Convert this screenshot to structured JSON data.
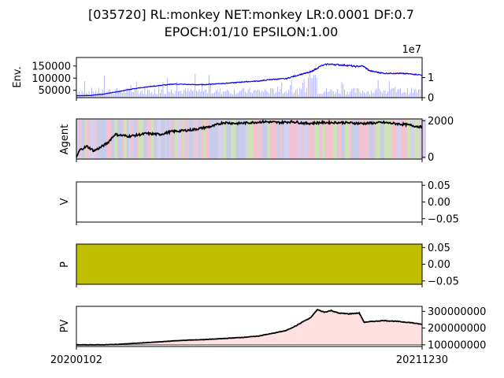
{
  "title_line1": "[035720] RL:monkey NET:monkey LR:0.0001 DF:0.7",
  "title_line2": "EPOCH:01/10 EPSILON:1.00",
  "colors": {
    "volume": "#9999ff",
    "price_candle_up": "#ff0000",
    "price_candle_down": "#0000ff",
    "line": "#000000",
    "p_fill": "#bfbf00",
    "pv_fill": "#ffe0e0",
    "agent_bands": [
      "#f4c2d0",
      "#c8cce8",
      "#cfe2b8",
      "#e8c8d8",
      "#d8d0f0"
    ]
  },
  "x_axis": {
    "tick_labels": [
      "20200102",
      "20211230"
    ]
  },
  "chart_data": [
    {
      "type": "bar",
      "panel": "env",
      "ylabel": "Env.",
      "left_ticks": [
        "150000",
        "100000",
        "50000"
      ],
      "left_ylim": [
        20000,
        185000
      ],
      "right_ticks": [
        "0",
        "1"
      ],
      "right_offset_label": "1e7",
      "right_ylim": [
        0,
        2.0
      ],
      "price_series": [
        {
          "i": 0,
          "v": 28000
        },
        {
          "i": 20,
          "v": 29000
        },
        {
          "i": 40,
          "v": 35000
        },
        {
          "i": 60,
          "v": 45000
        },
        {
          "i": 80,
          "v": 56000
        },
        {
          "i": 100,
          "v": 64000
        },
        {
          "i": 120,
          "v": 70000
        },
        {
          "i": 140,
          "v": 76000
        },
        {
          "i": 160,
          "v": 74000
        },
        {
          "i": 180,
          "v": 73000
        },
        {
          "i": 200,
          "v": 77000
        },
        {
          "i": 220,
          "v": 80000
        },
        {
          "i": 240,
          "v": 85000
        },
        {
          "i": 260,
          "v": 88000
        },
        {
          "i": 280,
          "v": 95000
        },
        {
          "i": 300,
          "v": 98000
        },
        {
          "i": 320,
          "v": 115000
        },
        {
          "i": 335,
          "v": 125000
        },
        {
          "i": 350,
          "v": 150000
        },
        {
          "i": 360,
          "v": 158000
        },
        {
          "i": 375,
          "v": 155000
        },
        {
          "i": 390,
          "v": 152000
        },
        {
          "i": 400,
          "v": 148000
        },
        {
          "i": 410,
          "v": 150000
        },
        {
          "i": 420,
          "v": 130000
        },
        {
          "i": 440,
          "v": 120000
        },
        {
          "i": 460,
          "v": 120000
        },
        {
          "i": 480,
          "v": 117000
        },
        {
          "i": 495,
          "v": 113000
        }
      ]
    },
    {
      "type": "line",
      "panel": "agent",
      "ylabel": "Agent",
      "right_ticks": [
        "0",
        "2000"
      ],
      "ylim": [
        -100,
        2100
      ],
      "series": [
        {
          "i": 0,
          "v": 0
        },
        {
          "i": 5,
          "v": 400
        },
        {
          "i": 15,
          "v": 600
        },
        {
          "i": 25,
          "v": 350
        },
        {
          "i": 35,
          "v": 550
        },
        {
          "i": 45,
          "v": 800
        },
        {
          "i": 55,
          "v": 1250
        },
        {
          "i": 65,
          "v": 1200
        },
        {
          "i": 75,
          "v": 1150
        },
        {
          "i": 85,
          "v": 1200
        },
        {
          "i": 100,
          "v": 1300
        },
        {
          "i": 120,
          "v": 1250
        },
        {
          "i": 135,
          "v": 1400
        },
        {
          "i": 150,
          "v": 1450
        },
        {
          "i": 165,
          "v": 1500
        },
        {
          "i": 180,
          "v": 1600
        },
        {
          "i": 195,
          "v": 1700
        },
        {
          "i": 210,
          "v": 1900
        },
        {
          "i": 230,
          "v": 1850
        },
        {
          "i": 250,
          "v": 1900
        },
        {
          "i": 270,
          "v": 1950
        },
        {
          "i": 290,
          "v": 1900
        },
        {
          "i": 310,
          "v": 1950
        },
        {
          "i": 330,
          "v": 1850
        },
        {
          "i": 350,
          "v": 1900
        },
        {
          "i": 380,
          "v": 1900
        },
        {
          "i": 410,
          "v": 1850
        },
        {
          "i": 440,
          "v": 1900
        },
        {
          "i": 470,
          "v": 1800
        },
        {
          "i": 495,
          "v": 1650
        }
      ]
    },
    {
      "type": "line",
      "panel": "v",
      "ylabel": "V",
      "right_ticks": [
        "0.05",
        "0.00",
        "−0.05"
      ],
      "ylim": [
        -0.06,
        0.06
      ]
    },
    {
      "type": "area",
      "panel": "p",
      "ylabel": "P",
      "right_ticks": [
        "0.05",
        "0.00",
        "−0.05"
      ],
      "ylim": [
        -0.06,
        0.06
      ]
    },
    {
      "type": "area",
      "panel": "pv",
      "ylabel": "PV",
      "right_ticks": [
        "300000000",
        "200000000",
        "100000000"
      ],
      "ylim": [
        90000000,
        330000000
      ],
      "baseline": 100000000,
      "series": [
        {
          "i": 0,
          "v": 100000000
        },
        {
          "i": 40,
          "v": 100500000
        },
        {
          "i": 60,
          "v": 103000000
        },
        {
          "i": 80,
          "v": 108000000
        },
        {
          "i": 100,
          "v": 113000000
        },
        {
          "i": 120,
          "v": 118000000
        },
        {
          "i": 140,
          "v": 124000000
        },
        {
          "i": 160,
          "v": 128000000
        },
        {
          "i": 180,
          "v": 131000000
        },
        {
          "i": 200,
          "v": 135000000
        },
        {
          "i": 220,
          "v": 140000000
        },
        {
          "i": 240,
          "v": 145000000
        },
        {
          "i": 260,
          "v": 152000000
        },
        {
          "i": 280,
          "v": 168000000
        },
        {
          "i": 300,
          "v": 185000000
        },
        {
          "i": 315,
          "v": 215000000
        },
        {
          "i": 325,
          "v": 240000000
        },
        {
          "i": 335,
          "v": 260000000
        },
        {
          "i": 345,
          "v": 310000000
        },
        {
          "i": 355,
          "v": 295000000
        },
        {
          "i": 365,
          "v": 305000000
        },
        {
          "i": 375,
          "v": 290000000
        },
        {
          "i": 390,
          "v": 285000000
        },
        {
          "i": 405,
          "v": 290000000
        },
        {
          "i": 412,
          "v": 235000000
        },
        {
          "i": 425,
          "v": 240000000
        },
        {
          "i": 440,
          "v": 245000000
        },
        {
          "i": 460,
          "v": 240000000
        },
        {
          "i": 480,
          "v": 232000000
        },
        {
          "i": 495,
          "v": 222000000
        }
      ]
    }
  ]
}
